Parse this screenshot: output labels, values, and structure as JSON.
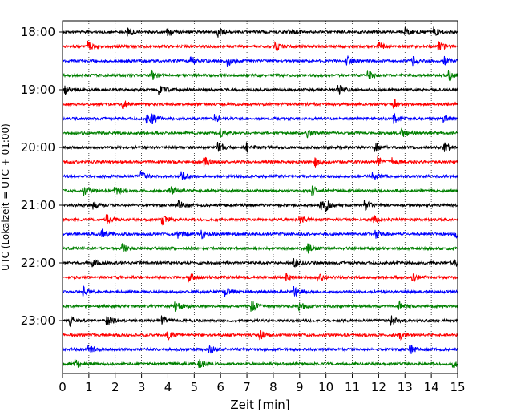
{
  "chart_data": {
    "type": "line",
    "xlabel": "Zeit  [min]",
    "ylabel": "UTC (Lokalzeit = UTC + 01:00)",
    "xlim": [
      0,
      15
    ],
    "x_ticks": [
      0,
      1,
      2,
      3,
      4,
      5,
      6,
      7,
      8,
      9,
      10,
      11,
      12,
      13,
      14,
      15
    ],
    "x_tick_labels": [
      "0",
      "1",
      "2",
      "3",
      "4",
      "5",
      "6",
      "7",
      "8",
      "9",
      "10",
      "11",
      "12",
      "13",
      "14",
      "15"
    ],
    "vertical_gridlines": "dotted at each minute",
    "trace_interval_min": 15,
    "y_tick_labels": [
      "18:00",
      "19:00",
      "20:00",
      "21:00",
      "22:00",
      "23:00"
    ],
    "series": [
      {
        "trace_start": "18:00",
        "color": "#000000",
        "events_min": [
          2.5,
          4.0,
          5.9,
          8.6,
          13.0,
          14.1
        ]
      },
      {
        "trace_start": "18:15",
        "color": "#ff0000",
        "events_min": [
          1.0,
          8.1,
          12.0,
          14.3
        ]
      },
      {
        "trace_start": "18:30",
        "color": "#0000ff",
        "events_min": [
          4.9,
          6.3,
          10.8,
          13.3,
          14.5
        ]
      },
      {
        "trace_start": "18:45",
        "color": "#008000",
        "events_min": [
          3.4,
          11.6,
          14.7
        ]
      },
      {
        "trace_start": "19:00",
        "color": "#000000",
        "events_min": [
          0.1,
          3.7,
          10.5
        ]
      },
      {
        "trace_start": "19:15",
        "color": "#ff0000",
        "events_min": [
          2.3,
          12.6
        ]
      },
      {
        "trace_start": "19:30",
        "color": "#0000ff",
        "events_min": [
          3.2,
          3.4,
          5.8,
          12.6,
          14.5
        ]
      },
      {
        "trace_start": "19:45",
        "color": "#008000",
        "events_min": [
          6.0,
          9.3,
          12.9
        ]
      },
      {
        "trace_start": "20:00",
        "color": "#000000",
        "events_min": [
          5.9,
          7.0,
          11.9,
          14.5
        ]
      },
      {
        "trace_start": "20:15",
        "color": "#ff0000",
        "events_min": [
          5.4,
          9.6,
          12.0,
          12.5
        ]
      },
      {
        "trace_start": "20:30",
        "color": "#0000ff",
        "events_min": [
          3.0,
          4.5,
          11.8
        ]
      },
      {
        "trace_start": "20:45",
        "color": "#008000",
        "events_min": [
          0.8,
          2.0,
          4.1,
          9.5
        ]
      },
      {
        "trace_start": "21:00",
        "color": "#000000",
        "events_min": [
          1.2,
          4.4,
          9.8,
          10.0,
          11.5
        ]
      },
      {
        "trace_start": "21:15",
        "color": "#ff0000",
        "events_min": [
          1.7,
          3.8,
          9.0,
          11.8
        ]
      },
      {
        "trace_start": "21:30",
        "color": "#0000ff",
        "events_min": [
          1.5,
          4.4,
          5.3,
          11.9,
          14.9
        ]
      },
      {
        "trace_start": "21:45",
        "color": "#008000",
        "events_min": [
          2.3,
          9.3
        ]
      },
      {
        "trace_start": "22:00",
        "color": "#000000",
        "events_min": [
          1.1,
          8.8,
          14.9
        ]
      },
      {
        "trace_start": "22:15",
        "color": "#ff0000",
        "events_min": [
          4.8,
          8.5,
          9.7,
          13.3
        ]
      },
      {
        "trace_start": "22:30",
        "color": "#0000ff",
        "events_min": [
          0.8,
          6.2,
          8.8
        ]
      },
      {
        "trace_start": "22:45",
        "color": "#008000",
        "events_min": [
          4.3,
          7.2,
          9.0,
          12.8
        ]
      },
      {
        "trace_start": "23:00",
        "color": "#000000",
        "events_min": [
          0.3,
          1.7,
          3.8,
          12.5
        ]
      },
      {
        "trace_start": "23:15",
        "color": "#ff0000",
        "events_min": [
          4.0,
          7.5,
          12.8
        ]
      },
      {
        "trace_start": "23:30",
        "color": "#0000ff",
        "events_min": [
          1.0,
          5.6,
          13.2
        ]
      },
      {
        "trace_start": "23:45",
        "color": "#008000",
        "events_min": [
          0.5,
          5.2,
          14.8
        ]
      }
    ]
  }
}
